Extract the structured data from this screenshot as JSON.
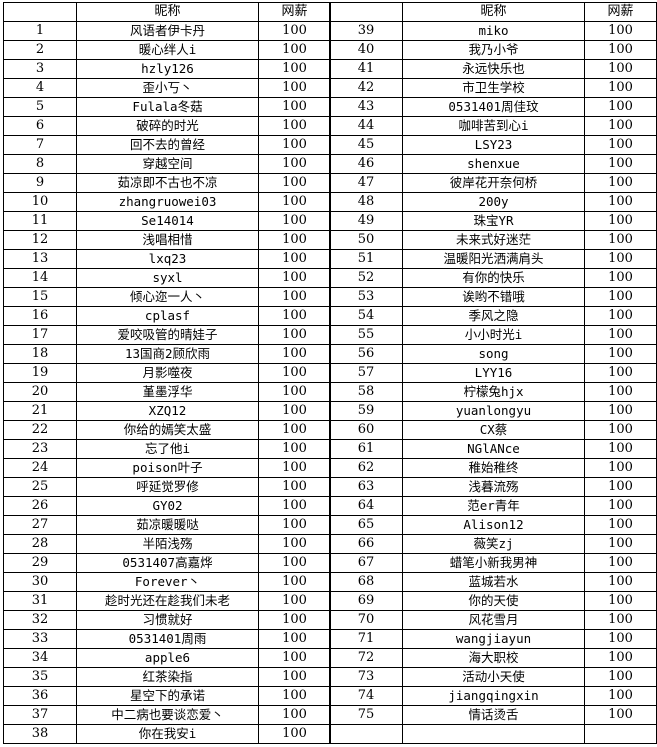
{
  "headers": {
    "index": "",
    "nickname": "昵称",
    "salary": "网薪"
  },
  "left_rows": [
    [
      "1",
      "风语者伊卡丹",
      "100"
    ],
    [
      "2",
      "暖心绊人i",
      "100"
    ],
    [
      "3",
      "hzly126",
      "100"
    ],
    [
      "4",
      "歪小丂丶",
      "100"
    ],
    [
      "5",
      "Fulala冬菇",
      "100"
    ],
    [
      "6",
      "破碎的时光",
      "100"
    ],
    [
      "7",
      "回不去的曾经",
      "100"
    ],
    [
      "8",
      "穿越空间",
      "100"
    ],
    [
      "9",
      "茹凉即不古也不凉",
      "100"
    ],
    [
      "10",
      "zhangruowei03",
      "100"
    ],
    [
      "11",
      "Se14014",
      "100"
    ],
    [
      "12",
      "浅唱相惜",
      "100"
    ],
    [
      "13",
      "lxq23",
      "100"
    ],
    [
      "14",
      "syxl",
      "100"
    ],
    [
      "15",
      "倾心迩一人丶",
      "100"
    ],
    [
      "16",
      "cplasf",
      "100"
    ],
    [
      "17",
      "爱咬吸管的晴娃子",
      "100"
    ],
    [
      "18",
      "13国商2顾欣雨",
      "100"
    ],
    [
      "19",
      "月影噬夜",
      "100"
    ],
    [
      "20",
      "堇墨浮华",
      "100"
    ],
    [
      "21",
      "XZQ12",
      "100"
    ],
    [
      "22",
      "你给的嫣笑太盛",
      "100"
    ],
    [
      "23",
      "忘了他i",
      "100"
    ],
    [
      "24",
      "poison叶子",
      "100"
    ],
    [
      "25",
      "呼延觉罗修",
      "100"
    ],
    [
      "26",
      "GY02",
      "100"
    ],
    [
      "27",
      "茹凉暖暖哒",
      "100"
    ],
    [
      "28",
      "半陌浅殇",
      "100"
    ],
    [
      "29",
      "0531407高嘉烨",
      "100"
    ],
    [
      "30",
      "Forever丶",
      "100"
    ],
    [
      "31",
      "趁时光还在趁我们未老",
      "100"
    ],
    [
      "32",
      "习惯就好",
      "100"
    ],
    [
      "33",
      "0531401周雨",
      "100"
    ],
    [
      "34",
      "apple6",
      "100"
    ],
    [
      "35",
      "红茶染指",
      "100"
    ],
    [
      "36",
      "星空下的承诺",
      "100"
    ],
    [
      "37",
      "中二病也要谈恋爱丶",
      "100"
    ],
    [
      "38",
      "你在我安i",
      "100"
    ]
  ],
  "right_rows": [
    [
      "39",
      "miko",
      "100"
    ],
    [
      "40",
      "我乃小爷",
      "100"
    ],
    [
      "41",
      "永远快乐也",
      "100"
    ],
    [
      "42",
      "市卫生学校",
      "100"
    ],
    [
      "43",
      "0531401周佳玟",
      "100"
    ],
    [
      "44",
      "咖啡苦到心i",
      "100"
    ],
    [
      "45",
      "LSY23",
      "100"
    ],
    [
      "46",
      "shenxue",
      "100"
    ],
    [
      "47",
      "彼岸花开奈何桥",
      "100"
    ],
    [
      "48",
      "200y",
      "100"
    ],
    [
      "49",
      "珠宝YR",
      "100"
    ],
    [
      "50",
      "未来式好迷茫",
      "100"
    ],
    [
      "51",
      "温暖阳光洒满肩头",
      "100"
    ],
    [
      "52",
      "有你的快乐",
      "100"
    ],
    [
      "53",
      "诶哟不错哦",
      "100"
    ],
    [
      "54",
      "季风之隐",
      "100"
    ],
    [
      "55",
      "小小时光i",
      "100"
    ],
    [
      "56",
      "song",
      "100"
    ],
    [
      "57",
      "LYY16",
      "100"
    ],
    [
      "58",
      "柠檬兔hjx",
      "100"
    ],
    [
      "59",
      "yuanlongyu",
      "100"
    ],
    [
      "60",
      "CX蔡",
      "100"
    ],
    [
      "61",
      "NGlANce",
      "100"
    ],
    [
      "62",
      "稚始稚终",
      "100"
    ],
    [
      "63",
      "浅暮流殇",
      "100"
    ],
    [
      "64",
      "范er青年",
      "100"
    ],
    [
      "65",
      "Alison12",
      "100"
    ],
    [
      "66",
      "薇笑zj",
      "100"
    ],
    [
      "67",
      "蜡笔小新我男神",
      "100"
    ],
    [
      "68",
      "蓝城若水",
      "100"
    ],
    [
      "69",
      "你的天使",
      "100"
    ],
    [
      "70",
      "风花雪月",
      "100"
    ],
    [
      "71",
      "wangjiayun",
      "100"
    ],
    [
      "72",
      "海大职校",
      "100"
    ],
    [
      "73",
      "活动小天使",
      "100"
    ],
    [
      "74",
      "jiangqingxin",
      "100"
    ],
    [
      "75",
      "情话烫舌",
      "100"
    ],
    [
      "",
      "",
      ""
    ]
  ]
}
